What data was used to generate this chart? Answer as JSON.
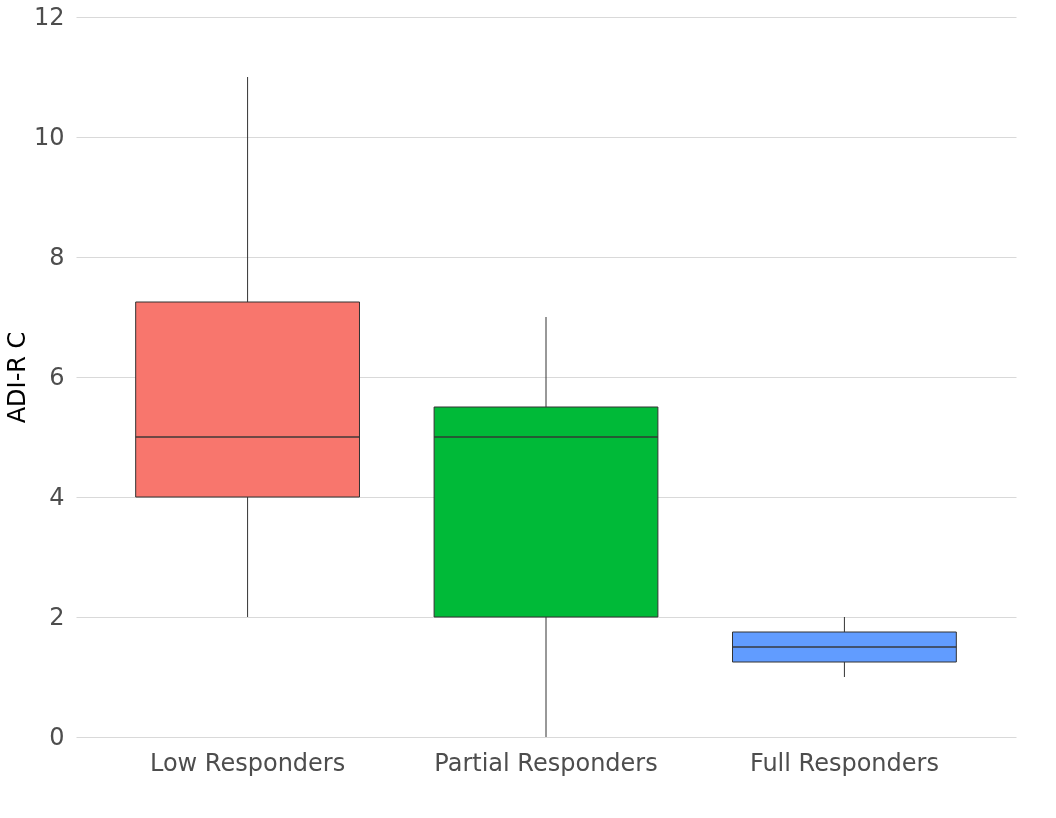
{
  "chart_data": {
    "type": "box",
    "ylabel": "ADI-R C",
    "categories": [
      "Low Responders",
      "Partial Responders",
      "Full Responders"
    ],
    "boxes": [
      {
        "low": 2,
        "q1": 4,
        "median": 5,
        "q3": 7.25,
        "high": 11
      },
      {
        "low": 0,
        "q1": 2,
        "median": 5,
        "q3": 5.5,
        "high": 7
      },
      {
        "low": 1,
        "q1": 1.25,
        "median": 1.5,
        "q3": 1.75,
        "high": 2
      }
    ],
    "colors": [
      "#f8766d",
      "#00ba38",
      "#619cff"
    ],
    "ylim": [
      0,
      12
    ],
    "yticks": [
      0,
      2,
      4,
      6,
      8,
      10,
      12
    ],
    "grid": "y"
  }
}
